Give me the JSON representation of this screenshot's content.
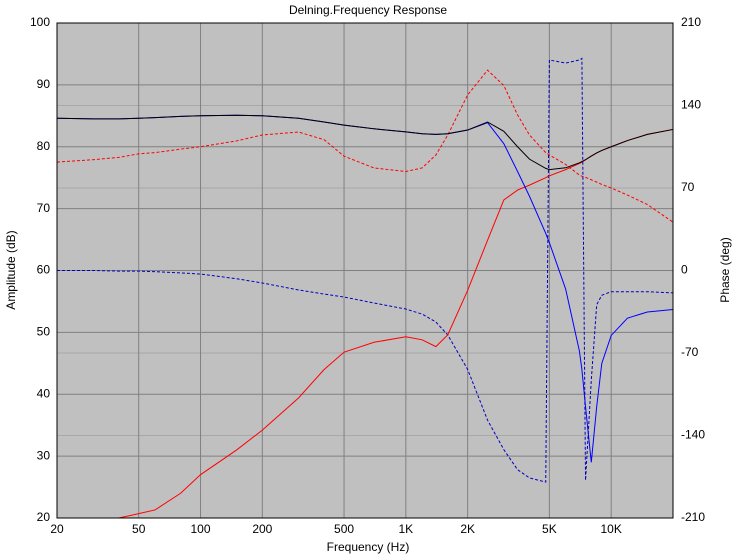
{
  "chart_data": {
    "type": "line",
    "title": "Delning.Frequency Response",
    "xlabel": "Frequency (Hz)",
    "ylabel": "Amplitude (dB)",
    "y2label": "Phase (deg)",
    "xscale": "log",
    "grid": true,
    "xlim": [
      20,
      20000
    ],
    "xticks": [
      20,
      50,
      100,
      200,
      500,
      {
        "value": 1000,
        "label": "1K"
      },
      {
        "value": 2000,
        "label": "2K"
      },
      {
        "value": 5000,
        "label": "5K"
      },
      {
        "value": 10000,
        "label": "10K"
      }
    ],
    "ylim": [
      20,
      100
    ],
    "yticks": [
      20,
      30,
      40,
      50,
      60,
      70,
      80,
      90,
      100
    ],
    "y2lim": [
      -210,
      210
    ],
    "y2ticks": [
      -210,
      -140,
      -70,
      0,
      70,
      140,
      210
    ],
    "x": [
      20,
      30,
      40,
      50,
      60,
      80,
      100,
      150,
      200,
      300,
      400,
      500,
      700,
      1000,
      1200,
      1400,
      1600,
      2000,
      2500,
      3000,
      3500,
      4000,
      4800,
      5000,
      6000,
      7000,
      7200,
      7500,
      8000,
      8500,
      9000,
      10000,
      12000,
      15000,
      20000
    ],
    "series": [
      {
        "color": "#ff0000",
        "line_style": "dashed",
        "axis": "y2",
        "values": [
          92,
          94,
          96,
          99,
          100,
          103,
          105,
          110,
          115,
          117.5,
          111,
          97,
          87,
          84,
          87,
          98,
          115,
          149,
          170,
          157,
          132,
          115,
          100,
          98,
          90,
          81,
          80,
          79,
          77,
          75,
          73,
          70,
          64,
          56,
          41
        ]
      },
      {
        "color": "#0000c0",
        "line_style": "dashed",
        "axis": "y2",
        "values": [
          0,
          0,
          -0.5,
          -0.5,
          -1,
          -2,
          -3,
          -7,
          -10.6,
          -16.5,
          -20,
          -22.5,
          -27.6,
          -32.7,
          -37,
          -43.7,
          -54.7,
          -84,
          -127,
          -152,
          -169,
          -176,
          -179.5,
          178.6,
          176,
          178.6,
          180,
          -178,
          -93,
          -29,
          -21,
          -18,
          -18,
          -18,
          -19
        ]
      },
      {
        "color": "#ff0000",
        "line_style": "solid",
        "values": [
          null,
          null,
          20,
          20.7,
          21.3,
          24,
          27,
          31,
          34.2,
          39.4,
          44,
          46.8,
          48.4,
          49.3,
          48.8,
          47.7,
          49.6,
          56.8,
          64.9,
          71.4,
          73,
          73.8,
          75,
          75.3,
          76.3,
          77.3,
          77.5,
          77.9,
          78.5,
          79,
          79.4,
          80,
          81,
          82,
          82.8
        ]
      },
      {
        "color": "#0000ff",
        "line_style": "solid",
        "values": [
          84.6,
          84.5,
          84.5,
          84.6,
          84.7,
          84.9,
          85.0,
          85.1,
          85.0,
          84.6,
          84.0,
          83.5,
          82.9,
          82.4,
          82.1,
          82.0,
          82.1,
          82.7,
          83.9,
          80.5,
          76,
          72,
          66,
          64.5,
          57,
          47,
          44,
          38,
          29,
          38,
          45,
          49.5,
          52.3,
          53.3,
          53.7
        ]
      },
      {
        "color": "#000000",
        "line_style": "solid",
        "values": [
          84.6,
          84.5,
          84.5,
          84.6,
          84.7,
          84.9,
          85.0,
          85.1,
          85.0,
          84.6,
          84.0,
          83.5,
          82.9,
          82.4,
          82.1,
          82.0,
          82.1,
          82.7,
          84.0,
          82.5,
          80.0,
          78.0,
          76.5,
          76.3,
          76.6,
          77.4,
          77.6,
          77.9,
          78.5,
          79.0,
          79.4,
          80.0,
          81.0,
          82.0,
          82.8
        ]
      }
    ]
  }
}
